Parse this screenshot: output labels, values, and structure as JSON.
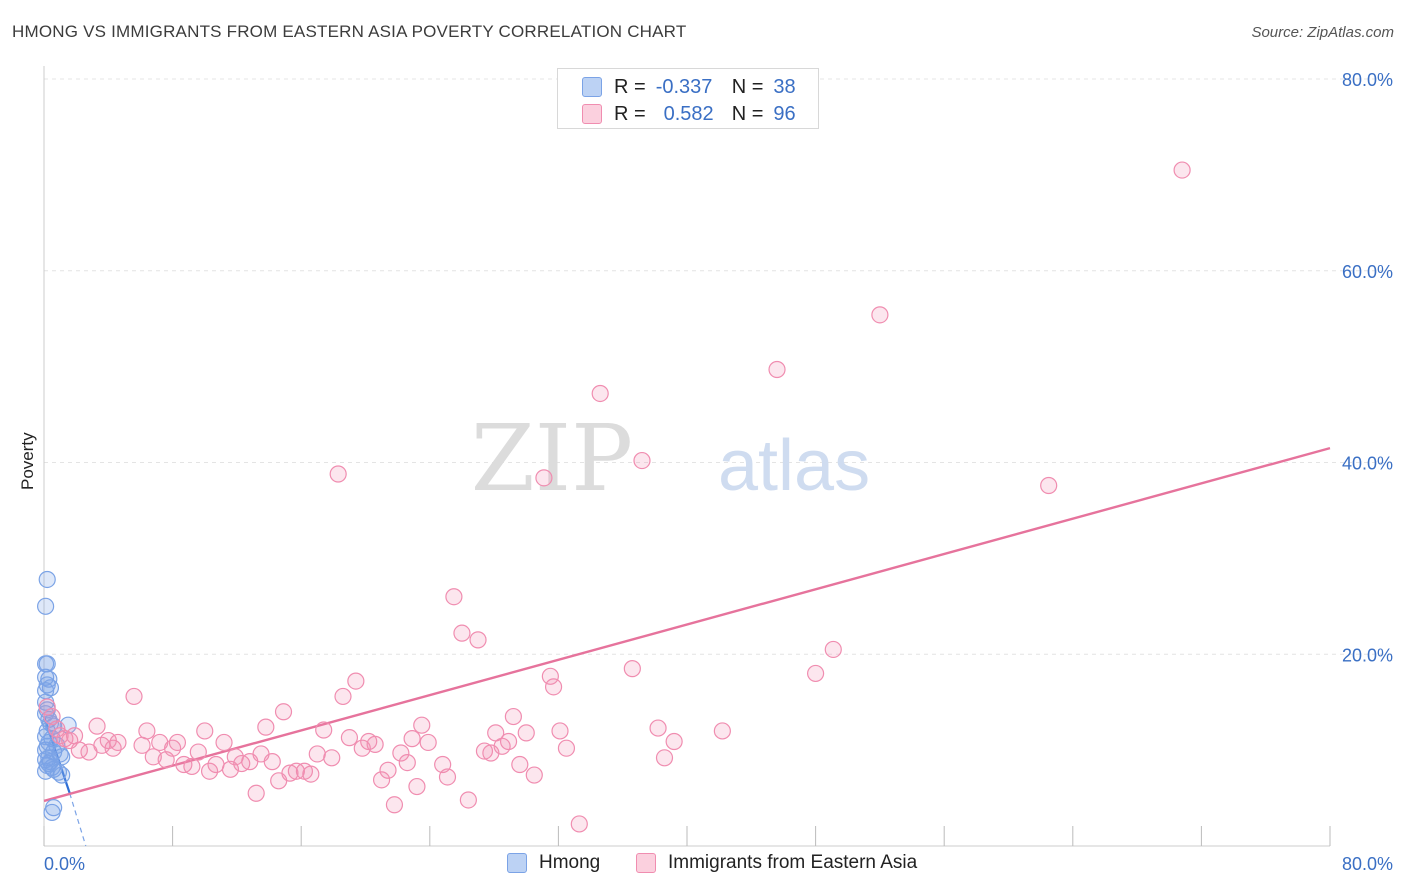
{
  "header": {
    "title": "HMONG VS IMMIGRANTS FROM EASTERN ASIA POVERTY CORRELATION CHART",
    "source": "Source: ZipAtlas.com"
  },
  "legend": {
    "r_label": "R =",
    "n_label": "N =",
    "rows": [
      {
        "name": "Hmong",
        "r": "-0.337",
        "n": "38",
        "color": "#7ba3e6"
      },
      {
        "name": "Immigrants from Eastern Asia",
        "r": "0.582",
        "n": "96",
        "color": "#f08db0"
      }
    ]
  },
  "watermark": {
    "part1": "ZIP",
    "part2": "atlas"
  },
  "chart_data": {
    "type": "scatter",
    "title": "HMONG VS IMMIGRANTS FROM EASTERN ASIA POVERTY CORRELATION CHART",
    "xlabel": "",
    "ylabel": "Poverty",
    "xlim": [
      0,
      80
    ],
    "ylim": [
      0,
      80
    ],
    "x_tick_labels": [
      "0.0%",
      "80.0%"
    ],
    "y_ticks": [
      {
        "value": 20,
        "label": "20.0%"
      },
      {
        "value": 40,
        "label": "40.0%"
      },
      {
        "value": 60,
        "label": "60.0%"
      },
      {
        "value": 80,
        "label": "80.0%"
      }
    ],
    "grid": true,
    "series": [
      {
        "name": "Hmong",
        "color": "#7ba3e6",
        "trend": {
          "x": [
            0,
            1.6
          ],
          "y": [
            13.5,
            5.5
          ],
          "dashed_to": [
            2.6,
            0
          ]
        },
        "points": [
          [
            0.2,
            27.8
          ],
          [
            0.1,
            25.0
          ],
          [
            0.1,
            19.0
          ],
          [
            0.2,
            19.0
          ],
          [
            0.1,
            17.6
          ],
          [
            0.3,
            17.4
          ],
          [
            0.2,
            16.8
          ],
          [
            0.1,
            16.2
          ],
          [
            0.4,
            16.5
          ],
          [
            0.1,
            15.0
          ],
          [
            0.2,
            14.2
          ],
          [
            0.1,
            13.8
          ],
          [
            0.3,
            13.2
          ],
          [
            0.4,
            12.8
          ],
          [
            0.6,
            12.5
          ],
          [
            1.5,
            12.6
          ],
          [
            0.2,
            12.0
          ],
          [
            0.1,
            11.4
          ],
          [
            0.5,
            11.2
          ],
          [
            0.3,
            10.8
          ],
          [
            0.2,
            10.4
          ],
          [
            0.8,
            10.5
          ],
          [
            0.1,
            10.0
          ],
          [
            0.6,
            9.8
          ],
          [
            1.0,
            9.6
          ],
          [
            1.1,
            9.3
          ],
          [
            0.3,
            9.2
          ],
          [
            0.1,
            9.0
          ],
          [
            0.4,
            8.8
          ],
          [
            0.2,
            8.4
          ],
          [
            0.5,
            8.2
          ],
          [
            0.6,
            8.0
          ],
          [
            0.1,
            7.8
          ],
          [
            0.9,
            7.7
          ],
          [
            1.1,
            7.4
          ],
          [
            0.6,
            4.0
          ],
          [
            0.5,
            3.5
          ],
          [
            0.3,
            8.6
          ]
        ]
      },
      {
        "name": "Immigrants from Eastern Asia",
        "color": "#f08db0",
        "trend": {
          "x": [
            0,
            80
          ],
          "y": [
            4.7,
            41.5
          ]
        },
        "points": [
          [
            0.2,
            14.5
          ],
          [
            0.5,
            13.5
          ],
          [
            0.8,
            12.2
          ],
          [
            1.0,
            11.5
          ],
          [
            1.3,
            11.2
          ],
          [
            1.6,
            11.0
          ],
          [
            1.9,
            11.5
          ],
          [
            2.2,
            10.0
          ],
          [
            2.8,
            9.8
          ],
          [
            3.3,
            12.5
          ],
          [
            3.6,
            10.5
          ],
          [
            4.0,
            11.0
          ],
          [
            4.3,
            10.2
          ],
          [
            4.6,
            10.8
          ],
          [
            5.6,
            15.6
          ],
          [
            6.1,
            10.5
          ],
          [
            6.4,
            12.0
          ],
          [
            6.8,
            9.3
          ],
          [
            7.2,
            10.8
          ],
          [
            7.6,
            9.0
          ],
          [
            8.0,
            10.2
          ],
          [
            8.3,
            10.8
          ],
          [
            8.7,
            8.5
          ],
          [
            9.2,
            8.3
          ],
          [
            9.6,
            9.8
          ],
          [
            10.0,
            12.0
          ],
          [
            10.3,
            7.8
          ],
          [
            10.7,
            8.5
          ],
          [
            11.2,
            10.8
          ],
          [
            11.6,
            8.0
          ],
          [
            11.9,
            9.3
          ],
          [
            12.3,
            8.6
          ],
          [
            12.8,
            8.8
          ],
          [
            13.2,
            5.5
          ],
          [
            13.5,
            9.6
          ],
          [
            13.8,
            12.4
          ],
          [
            14.2,
            8.8
          ],
          [
            14.6,
            6.8
          ],
          [
            14.9,
            14.0
          ],
          [
            15.3,
            7.6
          ],
          [
            15.7,
            7.8
          ],
          [
            16.2,
            7.8
          ],
          [
            16.6,
            7.5
          ],
          [
            17.0,
            9.6
          ],
          [
            17.4,
            12.1
          ],
          [
            17.9,
            9.2
          ],
          [
            18.3,
            38.8
          ],
          [
            18.6,
            15.6
          ],
          [
            19.0,
            11.3
          ],
          [
            19.4,
            17.2
          ],
          [
            19.8,
            10.2
          ],
          [
            20.2,
            10.9
          ],
          [
            20.6,
            10.6
          ],
          [
            21.0,
            6.9
          ],
          [
            21.4,
            7.9
          ],
          [
            21.8,
            4.3
          ],
          [
            22.2,
            9.7
          ],
          [
            22.6,
            8.7
          ],
          [
            22.9,
            11.2
          ],
          [
            23.2,
            6.2
          ],
          [
            23.5,
            12.6
          ],
          [
            23.9,
            10.8
          ],
          [
            24.8,
            8.5
          ],
          [
            25.1,
            7.2
          ],
          [
            25.5,
            26.0
          ],
          [
            26.0,
            22.2
          ],
          [
            26.4,
            4.8
          ],
          [
            27.0,
            21.5
          ],
          [
            27.4,
            9.9
          ],
          [
            27.8,
            9.7
          ],
          [
            28.1,
            11.8
          ],
          [
            28.5,
            10.4
          ],
          [
            28.9,
            10.9
          ],
          [
            29.2,
            13.5
          ],
          [
            29.6,
            8.5
          ],
          [
            30.0,
            11.8
          ],
          [
            30.5,
            7.4
          ],
          [
            31.1,
            38.4
          ],
          [
            31.5,
            17.7
          ],
          [
            31.7,
            16.6
          ],
          [
            32.1,
            12.0
          ],
          [
            32.5,
            10.2
          ],
          [
            33.3,
            2.3
          ],
          [
            34.6,
            47.2
          ],
          [
            36.6,
            18.5
          ],
          [
            37.2,
            40.2
          ],
          [
            38.2,
            12.3
          ],
          [
            38.6,
            9.2
          ],
          [
            39.2,
            10.9
          ],
          [
            42.2,
            12.0
          ],
          [
            45.6,
            49.7
          ],
          [
            48.0,
            18.0
          ],
          [
            49.1,
            20.5
          ],
          [
            52.0,
            55.4
          ],
          [
            62.5,
            37.6
          ],
          [
            70.8,
            70.5
          ]
        ]
      }
    ]
  }
}
